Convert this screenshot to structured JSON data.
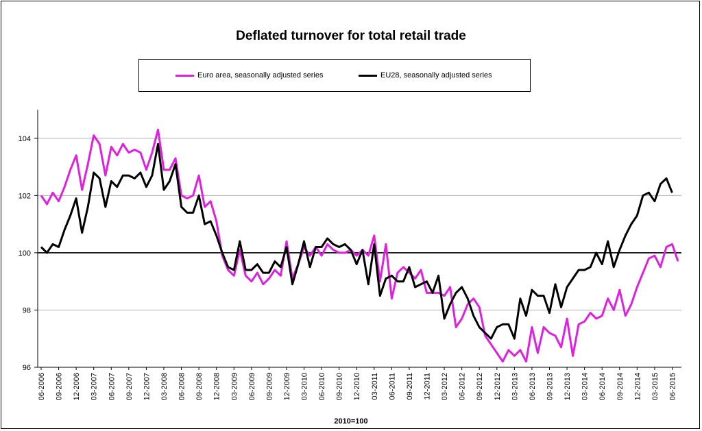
{
  "colors": {
    "euro_area": "#e020e0",
    "eu28": "#000000",
    "gridline": "#b0b0b0",
    "baseline": "#000000"
  },
  "chart_data": {
    "type": "line",
    "title": "Deflated turnover for total retail trade",
    "xlabel": "2010=100",
    "ylabel": "",
    "ylim": [
      96,
      105
    ],
    "yticks": [
      96,
      98,
      100,
      102,
      104
    ],
    "grid": true,
    "baseline": 100,
    "legend_position": "top",
    "x_start": "06-2006",
    "x_end": "06-2015",
    "xtick_labels": [
      "06-2006",
      "09-2006",
      "12-2006",
      "03-2007",
      "06-2007",
      "09-2007",
      "12-2007",
      "03-2008",
      "06-2008",
      "09-2008",
      "12-2008",
      "03-2009",
      "06-2009",
      "09-2009",
      "12-2009",
      "03-2010",
      "06-2010",
      "09-2010",
      "12-2010",
      "03-2011",
      "06-2011",
      "09-2011",
      "12-2011",
      "03-2012",
      "06-2012",
      "09-2012",
      "12-2012",
      "03-2013",
      "06-2013",
      "09-2013",
      "12-2013",
      "03-2014",
      "06-2014",
      "09-2014",
      "12-2014",
      "03-2015",
      "06-2015"
    ],
    "series": [
      {
        "name": "Euro area, seasonally adjusted series",
        "color": "#e020e0",
        "values": [
          102.0,
          101.7,
          102.1,
          101.8,
          102.3,
          102.9,
          103.4,
          102.2,
          103.1,
          104.1,
          103.8,
          102.7,
          103.7,
          103.4,
          103.8,
          103.5,
          103.6,
          103.5,
          102.9,
          103.5,
          104.3,
          102.9,
          102.9,
          103.3,
          102.0,
          101.9,
          102.0,
          102.7,
          101.6,
          101.8,
          101.1,
          99.9,
          99.4,
          99.2,
          100.1,
          99.2,
          99.0,
          99.3,
          98.9,
          99.1,
          99.4,
          99.2,
          100.4,
          99.1,
          99.6,
          100.2,
          99.9,
          100.2,
          99.9,
          100.3,
          100.1,
          100.0,
          100.0,
          100.1,
          99.9,
          100.1,
          99.9,
          100.6,
          99.0,
          100.3,
          98.4,
          99.3,
          99.5,
          99.3,
          99.1,
          99.4,
          98.6,
          98.6,
          98.6,
          98.5,
          98.8,
          97.4,
          97.7,
          98.2,
          98.4,
          98.1,
          97.1,
          96.8,
          96.5,
          96.2,
          96.6,
          96.4,
          96.6,
          96.2,
          97.4,
          96.5,
          97.4,
          97.2,
          97.1,
          96.7,
          97.7,
          96.4,
          97.5,
          97.6,
          97.9,
          97.7,
          97.8,
          98.4,
          98.0,
          98.7,
          97.8,
          98.2,
          98.8,
          99.3,
          99.8,
          99.9,
          99.5,
          100.2,
          100.3,
          99.7
        ]
      },
      {
        "name": "EU28, seasonally adjusted series",
        "color": "#000000",
        "values": [
          100.2,
          100.0,
          100.3,
          100.2,
          100.8,
          101.3,
          101.9,
          100.7,
          101.6,
          102.8,
          102.6,
          101.6,
          102.5,
          102.3,
          102.7,
          102.7,
          102.6,
          102.8,
          102.3,
          102.7,
          103.8,
          102.2,
          102.5,
          103.1,
          101.6,
          101.4,
          101.4,
          102.0,
          101.0,
          101.1,
          100.6,
          100.0,
          99.5,
          99.4,
          100.4,
          99.4,
          99.4,
          99.6,
          99.3,
          99.3,
          99.7,
          99.5,
          100.2,
          98.9,
          99.6,
          100.4,
          99.5,
          100.2,
          100.2,
          100.5,
          100.3,
          100.2,
          100.3,
          100.1,
          99.6,
          100.1,
          98.9,
          100.3,
          98.5,
          99.1,
          99.2,
          99.0,
          99.0,
          99.5,
          98.8,
          98.9,
          99.0,
          98.6,
          99.2,
          97.7,
          98.2,
          98.6,
          98.8,
          98.4,
          97.8,
          97.4,
          97.2,
          97.0,
          97.4,
          97.5,
          97.5,
          97.0,
          98.4,
          97.8,
          98.7,
          98.5,
          98.5,
          97.9,
          98.9,
          98.1,
          98.8,
          99.1,
          99.4,
          99.4,
          99.5,
          100.0,
          99.6,
          100.4,
          99.5,
          100.1,
          100.6,
          101.0,
          101.3,
          102.0,
          102.1,
          101.8,
          102.4,
          102.6,
          102.1
        ]
      }
    ]
  }
}
